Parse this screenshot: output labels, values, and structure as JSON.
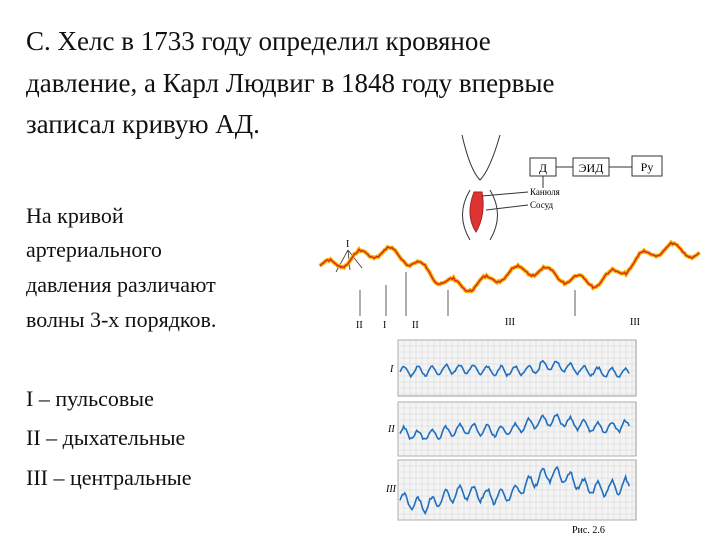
{
  "title_lines": [
    "С. Хелс в 1733 году определил кровяное",
    "давление, а Карл Людвиг в 1848 году впервые",
    "записал кривую АД."
  ],
  "intro_lines": [
    "На кривой",
    "артериального",
    "давления различают",
    "волны 3-х порядков."
  ],
  "list": [
    "I – пульсовые",
    "II – дыхательные",
    "III – центральные"
  ],
  "figure": {
    "apparatus_labels": [
      "Д",
      "ЭИД",
      "Ру",
      "Канюля",
      "Сосуд"
    ],
    "curve_top_label": "I",
    "curve_labels": [
      "II",
      "I",
      "II",
      "III",
      "III"
    ],
    "panel_labels": [
      "I",
      "II",
      "III"
    ],
    "caption": "Рис. 2.6"
  }
}
